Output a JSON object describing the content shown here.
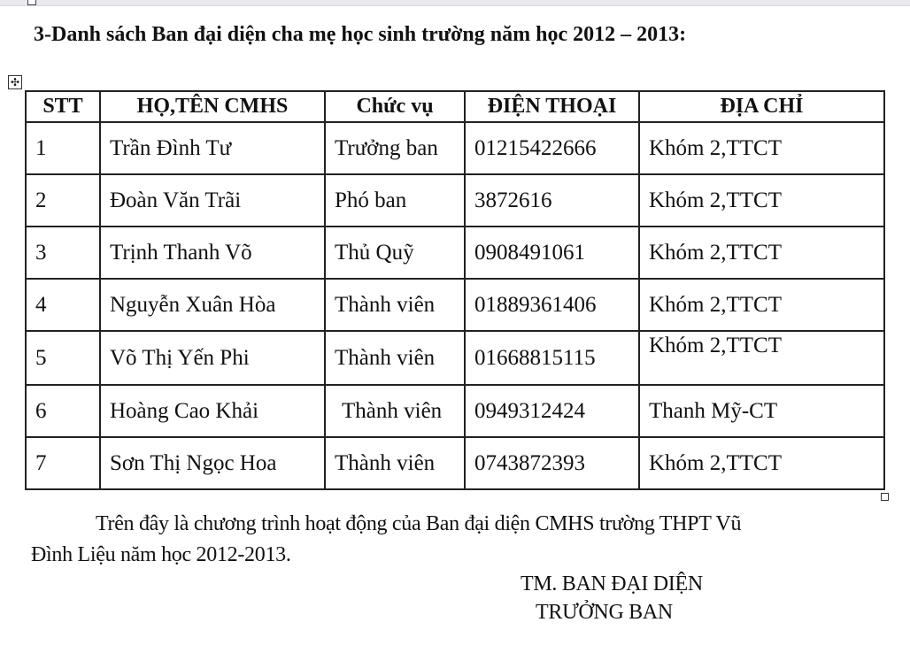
{
  "title": "3-Danh sách Ban đại diện cha mẹ học sinh trường năm học 2012 – 2013:",
  "table": {
    "headers": [
      "STT",
      "HỌ,TÊN CMHS",
      "Chức vụ",
      "ĐIỆN THOẠI",
      "ĐỊA CHỈ"
    ],
    "rows": [
      [
        "1",
        "Trần Đình Tư",
        "Trưởng ban",
        "01215422666",
        "Khóm 2,TTCT"
      ],
      [
        "2",
        "Đoàn Văn Trãi",
        "Phó ban",
        "3872616",
        "Khóm 2,TTCT"
      ],
      [
        "3",
        "Trịnh Thanh Võ",
        "Thủ Quỹ",
        "0908491061",
        "Khóm 2,TTCT"
      ],
      [
        "4",
        "Nguyễn Xuân Hòa",
        "Thành viên",
        "01889361406",
        "Khóm 2,TTCT"
      ],
      [
        "5",
        "Võ Thị Yến Phi",
        "Thành viên",
        "01668815115",
        "Khóm 2,TTCT"
      ],
      [
        "6",
        "Hoàng Cao Khải",
        "Thành viên",
        "0949312424",
        "Thanh Mỹ-CT"
      ],
      [
        "7",
        "Sơn Thị Ngọc Hoa",
        "Thành viên",
        "0743872393",
        "Khóm 2,TTCT"
      ]
    ]
  },
  "closing": {
    "line1": "Trên đây là chương trình hoạt động của Ban đại diện CMHS trường THPT Vũ",
    "line2": "Đình Liệu  năm học 2012-2013.",
    "signature_title": "TM. BAN ĐẠI DIỆN",
    "signature_role": "TRƯỞNG BAN"
  },
  "icons": {
    "table_move": "move-arrows-icon",
    "table_resize": "resize-handle-icon"
  }
}
